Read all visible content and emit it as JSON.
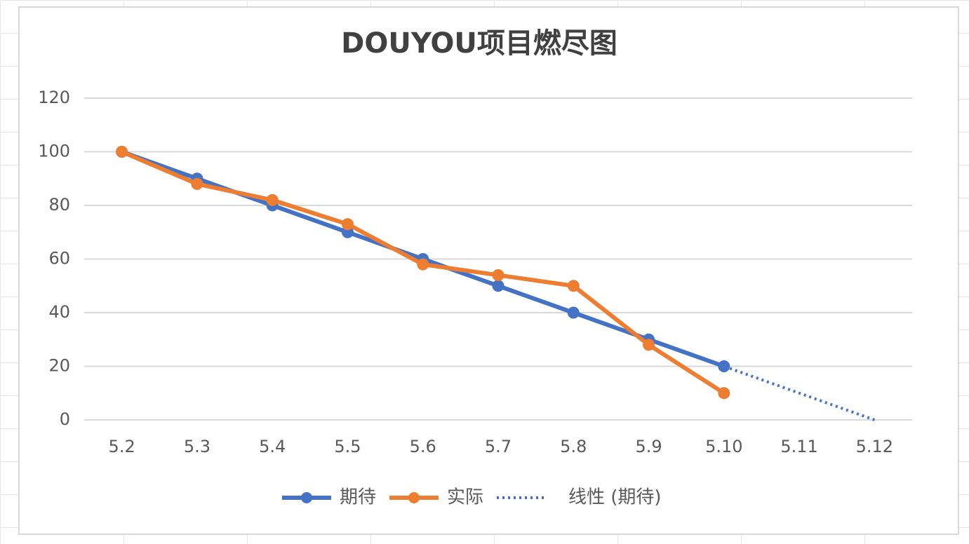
{
  "chart_data": {
    "type": "line",
    "title": "DOUYOU项目燃尽图",
    "categories": [
      "5.2",
      "5.3",
      "5.4",
      "5.5",
      "5.6",
      "5.7",
      "5.8",
      "5.9",
      "5.10",
      "5.11",
      "5.12"
    ],
    "series": [
      {
        "name": "期待",
        "color": "#4472c4",
        "values": [
          100,
          90,
          80,
          70,
          60,
          50,
          40,
          30,
          20,
          null,
          null
        ]
      },
      {
        "name": "实际",
        "color": "#ed7d31",
        "values": [
          100,
          88,
          82,
          73,
          58,
          54,
          50,
          28,
          10,
          null,
          null
        ]
      },
      {
        "name": "线性 (期待)",
        "color": "#4472c4",
        "style": "dotted",
        "values": [
          100,
          90,
          80,
          70,
          60,
          50,
          40,
          30,
          20,
          10,
          0
        ]
      }
    ],
    "ylim": [
      0,
      120
    ],
    "yticks": [
      0,
      20,
      40,
      60,
      80,
      100,
      120
    ],
    "grid": true,
    "legend": "bottom"
  }
}
